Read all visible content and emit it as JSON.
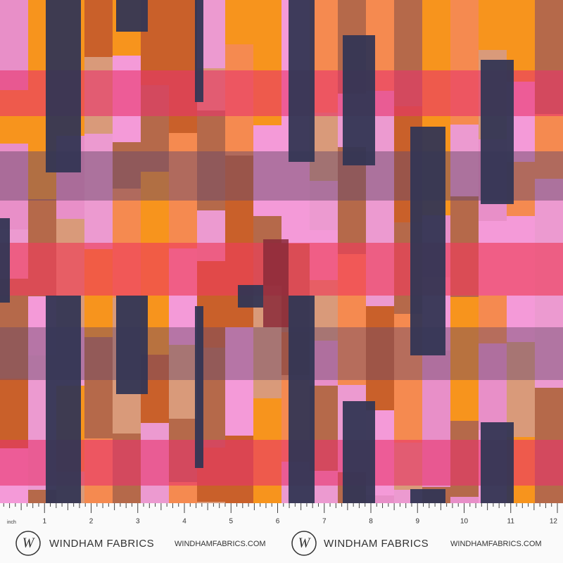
{
  "ruler": {
    "unit_label": "inch",
    "numbers": [
      1,
      2,
      3,
      4,
      5,
      6,
      7,
      8,
      9,
      10,
      11,
      12
    ]
  },
  "brand": [
    {
      "mark": "W",
      "name": "WINDHAM FABRICS",
      "url": "WINDHAMFABRICS.COM"
    },
    {
      "mark": "W",
      "name": "WINDHAM FABRICS",
      "url": "WINDHAMFABRICS.COM"
    }
  ]
}
